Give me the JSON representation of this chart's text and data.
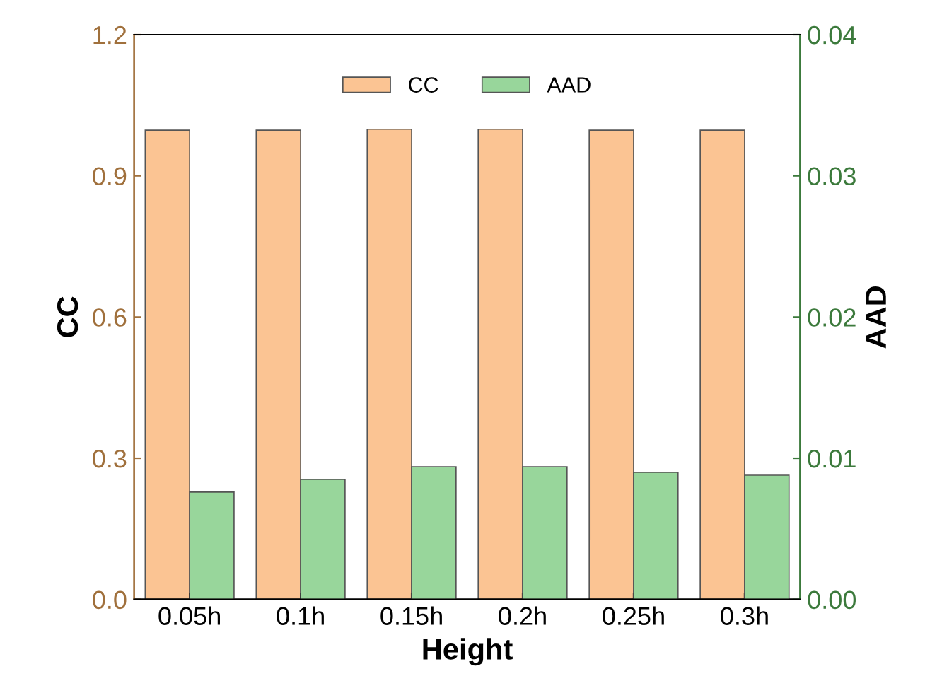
{
  "chart_data": {
    "type": "bar",
    "xlabel": "Height",
    "ylabel": "CC",
    "y2label": "AAD",
    "categories": [
      "0.05h",
      "0.1h",
      "0.15h",
      "0.2h",
      "0.25h",
      "0.3h"
    ],
    "series": [
      {
        "name": "CC",
        "color": "#fbc493",
        "values": [
          0.997,
          0.997,
          0.999,
          0.999,
          0.997,
          0.997
        ]
      },
      {
        "name": "AAD",
        "color": "#98d69b",
        "axis": "y2",
        "values": [
          0.0076,
          0.0085,
          0.0094,
          0.0094,
          0.009,
          0.0088
        ]
      }
    ],
    "ylim": [
      0,
      1.2
    ],
    "yticks": [
      {
        "value": 0,
        "label": "0.0"
      },
      0.3,
      0.6,
      0.9,
      {
        "value": 1.2,
        "label": "1.2"
      }
    ],
    "y2lim": [
      0,
      0.04
    ],
    "y2ticks": [
      {
        "value": 0,
        "label": "0.00"
      },
      0.01,
      0.02,
      0.03,
      {
        "value": 0.04,
        "label": "0.04"
      }
    ],
    "legend": "top",
    "grid": false
  }
}
